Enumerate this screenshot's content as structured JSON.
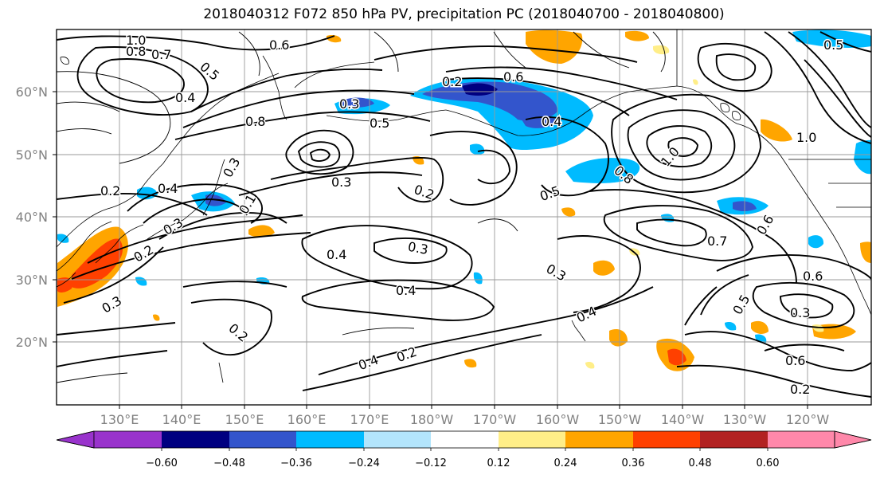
{
  "title": "2018040312 F072 850 hPa PV, precipitation PC (2018040700 - 2018040800)",
  "map": {
    "lat_labels": [
      "60°N",
      "50°N",
      "40°N",
      "30°N",
      "20°N"
    ],
    "lon_labels": [
      "130°E",
      "140°E",
      "150°E",
      "160°E",
      "170°E",
      "180°W",
      "170°W",
      "160°W",
      "150°W",
      "140°W",
      "130°W",
      "120°W"
    ],
    "contour_labels": [
      "1.0",
      "0.8",
      "0.7",
      "0.6",
      "0.5",
      "0.5",
      "0.4",
      "0.8",
      "0.5",
      "0.6",
      "0.3",
      "0.2",
      "0.4",
      "0.3",
      "0.2",
      "0.5",
      "0.8",
      "1.0",
      "1.0",
      "0.4",
      "0.3",
      "0.4",
      "0.3",
      "0.4",
      "0.3",
      "0.2",
      "0.2",
      "0.4",
      "0.2",
      "0.4",
      "0.7",
      "0.6",
      "0.6",
      "0.3",
      "0.5",
      "0.6",
      "0.2",
      "0.3",
      "0.2",
      "0.1",
      "0.3"
    ]
  },
  "colorbar": {
    "tick_labels": [
      "−0.60",
      "−0.48",
      "−0.36",
      "−0.24",
      "−0.12",
      "0.12",
      "0.24",
      "0.36",
      "0.48",
      "0.60"
    ],
    "colors": [
      "#9933cc",
      "#000080",
      "#3355cc",
      "#00bbff",
      "#b3e5fc",
      "#ffffff",
      "#ffee88",
      "#ffa500",
      "#ff4000",
      "#b22222",
      "#ff88aa"
    ]
  }
}
